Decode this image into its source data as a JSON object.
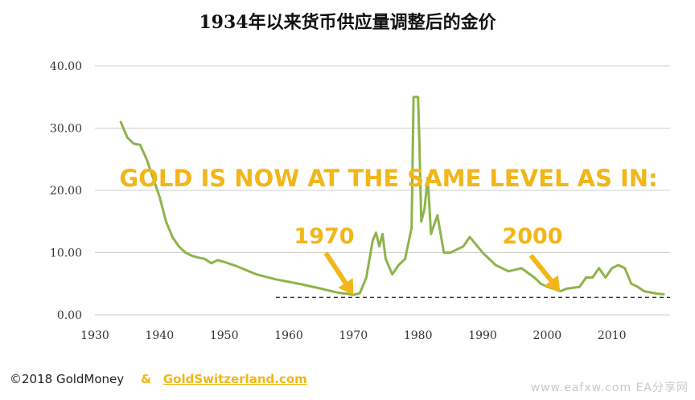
{
  "title": "1934年以来货币供应量调整后的金价",
  "footer": {
    "copyright": "©2018 GoldMoney",
    "ampersand": "&",
    "link": "GoldSwitzerland.com"
  },
  "watermark": "www.eafxw.com EA分享网",
  "colors": {
    "line": "#8db44a",
    "annotation": "#f2b619",
    "grid": "#cfcfcf",
    "dashed": "#333333"
  },
  "chart_data": {
    "type": "line",
    "title": "1934年以来货币供应量调整后的金价",
    "xlim": [
      1930,
      2019
    ],
    "ylim": [
      0,
      40
    ],
    "x_ticks": [
      "1930",
      "1940",
      "1950",
      "1960",
      "1970",
      "1980",
      "1990",
      "2000",
      "2010"
    ],
    "y_ticks": [
      "0.00",
      "10.00",
      "20.00",
      "30.00",
      "40.00"
    ],
    "grid": true,
    "series": [
      {
        "x": [
          1934,
          1935,
          1936,
          1937,
          1938,
          1939,
          1940,
          1941,
          1942,
          1943,
          1944,
          1945,
          1946,
          1947,
          1948,
          1949,
          1950,
          1952,
          1955,
          1958,
          1960,
          1962,
          1965,
          1967,
          1968,
          1969,
          1970,
          1971,
          1972,
          1973,
          1973.5,
          1974,
          1974.5,
          1975,
          1976,
          1977,
          1978,
          1979,
          1979.3,
          1980,
          1980.2,
          1980.5,
          1981,
          1981.5,
          1982,
          1983,
          1984,
          1985,
          1987,
          1988,
          1990,
          1992,
          1994,
          1996,
          1998,
          1999,
          2000,
          2001,
          2002,
          2003,
          2005,
          2006,
          2007,
          2008,
          2009,
          2010,
          2011,
          2012,
          2013,
          2014,
          2015,
          2016,
          2017,
          2018
        ],
        "y": [
          31,
          28.5,
          27.5,
          27.3,
          25,
          22,
          19,
          15,
          12.5,
          11,
          10,
          9.5,
          9.2,
          9,
          8.3,
          8.8,
          8.5,
          7.8,
          6.5,
          5.7,
          5.3,
          4.9,
          4.2,
          3.7,
          3.5,
          3.4,
          3.2,
          3.5,
          6,
          12,
          13.2,
          11,
          13,
          9,
          6.5,
          8,
          9,
          14,
          35,
          35,
          28,
          15,
          17,
          22,
          13,
          16,
          10,
          10,
          11,
          12.5,
          10,
          8,
          7,
          7.5,
          6,
          5,
          4.5,
          4.2,
          3.8,
          4.2,
          4.5,
          6,
          6,
          7.5,
          6,
          7.5,
          8,
          7.5,
          5,
          4.5,
          3.8,
          3.6,
          3.4,
          3.3
        ]
      }
    ],
    "reference_line": {
      "y": 2.8,
      "x_from": 1958,
      "x_to": 2019
    },
    "annotations": [
      {
        "text": "GOLD IS NOW AT THE SAME LEVEL AS IN:"
      },
      {
        "text": "1970",
        "arrow_to_x": 1970,
        "arrow_to_y": 3.2
      },
      {
        "text": "2000",
        "arrow_to_x": 2002,
        "arrow_to_y": 3.7
      }
    ]
  }
}
